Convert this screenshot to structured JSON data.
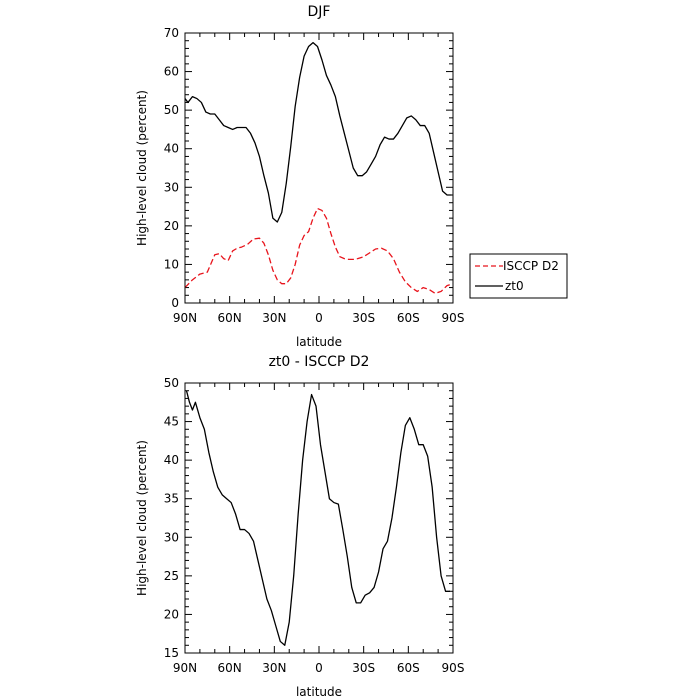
{
  "chart_data": [
    {
      "type": "line",
      "title": "DJF",
      "xlabel": "latitude",
      "ylabel": "High-level cloud (percent)",
      "xlim": [
        90,
        -90
      ],
      "ylim": [
        0,
        70
      ],
      "x_tick_values": [
        90,
        60,
        30,
        0,
        -30,
        -60,
        -90
      ],
      "x_tick_labels": [
        "90N",
        "60N",
        "30N",
        "0",
        "30S",
        "60S",
        "90S"
      ],
      "y_tick_values": [
        0,
        10,
        20,
        30,
        40,
        50,
        60,
        70
      ],
      "y_tick_labels": [
        "0",
        "10",
        "20",
        "30",
        "40",
        "50",
        "60",
        "70"
      ],
      "legend_position": "right",
      "series": [
        {
          "name": "ISCCP D2",
          "color": "#e8141c",
          "dash": "dashed",
          "x": [
            90,
            85,
            80,
            75,
            70,
            67,
            64,
            61,
            58,
            55,
            52,
            48,
            44,
            40,
            37,
            34,
            31,
            28,
            25,
            22,
            19,
            16,
            13,
            10,
            7,
            4,
            1,
            -2,
            -5,
            -8,
            -11,
            -14,
            -17,
            -20,
            -23,
            -26,
            -30,
            -34,
            -38,
            -42,
            -46,
            -50,
            -54,
            -58,
            -62,
            -66,
            -70,
            -74,
            -78,
            -82,
            -86,
            -90
          ],
          "y": [
            4,
            6,
            7.5,
            8,
            12.5,
            12.8,
            11.5,
            11,
            13.5,
            14.2,
            14.5,
            15.2,
            16.6,
            16.8,
            15.5,
            12.5,
            8.5,
            6,
            5,
            5,
            6.5,
            10,
            15,
            17.5,
            18.5,
            22,
            24.5,
            24,
            22,
            18,
            14.5,
            12,
            11.5,
            11.3,
            11.3,
            11.5,
            12,
            13,
            14,
            14.2,
            13.5,
            11.5,
            8,
            5.5,
            4,
            3,
            4,
            3.5,
            2.5,
            3,
            4.5,
            5
          ]
        },
        {
          "name": "zt0",
          "color": "#000000",
          "dash": "solid",
          "x": [
            90,
            88,
            85,
            82,
            79,
            76,
            73,
            70,
            67,
            64,
            61,
            58,
            55,
            52,
            49,
            46,
            43,
            40,
            37,
            34,
            31,
            28,
            25,
            22,
            19,
            16,
            13,
            10,
            7,
            4,
            1,
            -2,
            -5,
            -8,
            -11,
            -14,
            -17,
            -20,
            -23,
            -26,
            -29,
            -32,
            -35,
            -38,
            -41,
            -44,
            -47,
            -50,
            -53,
            -56,
            -59,
            -62,
            -65,
            -68,
            -71,
            -74,
            -77,
            -80,
            -83,
            -86,
            -89
          ],
          "y": [
            53,
            52,
            53.5,
            53,
            52,
            49.5,
            49,
            49,
            47.5,
            46,
            45.5,
            45,
            45.5,
            45.5,
            45.5,
            44,
            41.5,
            38,
            33,
            28.5,
            22,
            21,
            23.5,
            31,
            40.5,
            51,
            58.5,
            64,
            66.5,
            67.5,
            66.5,
            63,
            59,
            56.5,
            53.5,
            48.5,
            44,
            39.5,
            35,
            33,
            33,
            34,
            36,
            38,
            41,
            43,
            42.5,
            42.5,
            44,
            46,
            48,
            48.5,
            47.5,
            46,
            46,
            44,
            39,
            34,
            29,
            28,
            28
          ]
        }
      ]
    },
    {
      "type": "line",
      "title": "zt0 - ISCCP D2",
      "xlabel": "latitude",
      "ylabel": "High-level cloud (percent)",
      "xlim": [
        90,
        -90
      ],
      "ylim": [
        15,
        50
      ],
      "x_tick_values": [
        90,
        60,
        30,
        0,
        -30,
        -60,
        -90
      ],
      "x_tick_labels": [
        "90N",
        "60N",
        "30N",
        "0",
        "30S",
        "60S",
        "90S"
      ],
      "y_tick_values": [
        15,
        20,
        25,
        30,
        35,
        40,
        45,
        50
      ],
      "y_tick_labels": [
        "15",
        "20",
        "25",
        "30",
        "35",
        "40",
        "45",
        "50"
      ],
      "series": [
        {
          "color": "#000000",
          "dash": "solid",
          "x": [
            89,
            87,
            85,
            83,
            80,
            77,
            74,
            71,
            68,
            65,
            62,
            59,
            56,
            53,
            50,
            47,
            44,
            41,
            38,
            35,
            32,
            29,
            26,
            23,
            20,
            17,
            14,
            11,
            8,
            5,
            2,
            -1,
            -4,
            -7,
            -10,
            -13,
            -16,
            -19,
            -22,
            -25,
            -28,
            -31,
            -34,
            -37,
            -40,
            -43,
            -46,
            -49,
            -52,
            -55,
            -58,
            -61,
            -64,
            -67,
            -70,
            -73,
            -76,
            -79,
            -82,
            -85,
            -88
          ],
          "y": [
            49,
            47.5,
            46.5,
            47.5,
            45.5,
            44,
            41,
            38.5,
            36.5,
            35.5,
            35,
            34.5,
            33,
            31,
            31,
            30.5,
            29.5,
            27,
            24.5,
            22,
            20.5,
            18.5,
            16.5,
            16,
            19,
            25,
            33,
            40,
            45,
            48.5,
            47,
            42,
            38.5,
            35,
            34.5,
            34.3,
            31,
            27.5,
            23.5,
            21.5,
            21.5,
            22.5,
            22.8,
            23.5,
            25.5,
            28.5,
            29.5,
            32.5,
            36.5,
            41,
            44.5,
            45.5,
            44,
            42,
            42,
            40.5,
            36.5,
            30,
            25,
            23,
            23
          ]
        }
      ]
    }
  ]
}
